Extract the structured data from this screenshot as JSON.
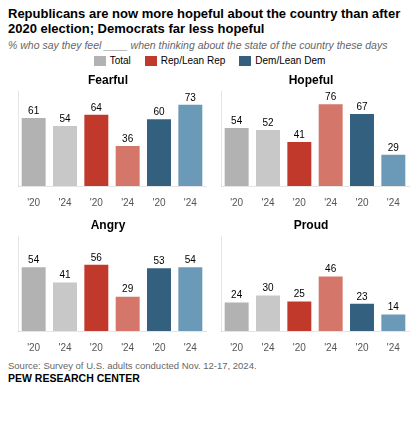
{
  "title": "Republicans are now more hopeful about the country than after 2020 election; Democrats far less hopeful",
  "subtitle": "% who say they feel ____ when thinking about the state of the country these days",
  "annotations": [
    "Source: Survey of U.S. adults conducted Nov. 12-17, 2024.",
    "PEW RESEARCH CENTER"
  ],
  "legend": "top",
  "chart_data": [
    {
      "type": "bar",
      "title": "Fearful",
      "categories": [
        "'20",
        "'24",
        "'20",
        "'24",
        "'20",
        "'24"
      ],
      "series": [
        {
          "name": "Total",
          "color": "#b2b2b2",
          "colors": [
            "#b2b2b2",
            "#c8c8c8",
            null,
            null,
            null,
            null
          ],
          "values": [
            61,
            54,
            null,
            null,
            null,
            null
          ]
        },
        {
          "name": "Rep/Lean Rep",
          "color": "#c0392b",
          "colors": [
            null,
            null,
            "#c0392b",
            "#d4766a",
            null,
            null
          ],
          "values": [
            null,
            null,
            64,
            36,
            null,
            null
          ]
        },
        {
          "name": "Dem/Lean Dem",
          "color": "#34607f",
          "colors": [
            null,
            null,
            null,
            null,
            "#34607f",
            "#6a9ab8"
          ],
          "values": [
            null,
            null,
            null,
            null,
            60,
            73
          ]
        }
      ],
      "ylim": [
        0,
        85
      ],
      "grid": false,
      "data_labels": true,
      "tick_labels": "x"
    },
    {
      "type": "bar",
      "title": "Hopeful",
      "categories": [
        "'20",
        "'24",
        "'20",
        "'24",
        "'20",
        "'24"
      ],
      "series": [
        {
          "name": "Total",
          "color": "#b2b2b2",
          "colors": [
            "#b2b2b2",
            "#c8c8c8",
            null,
            null,
            null,
            null
          ],
          "values": [
            54,
            52,
            null,
            null,
            null,
            null
          ]
        },
        {
          "name": "Rep/Lean Rep",
          "color": "#c0392b",
          "colors": [
            null,
            null,
            "#c0392b",
            "#d4766a",
            null,
            null
          ],
          "values": [
            null,
            null,
            41,
            76,
            null,
            null
          ]
        },
        {
          "name": "Dem/Lean Dem",
          "color": "#34607f",
          "colors": [
            null,
            null,
            null,
            null,
            "#34607f",
            "#6a9ab8"
          ],
          "values": [
            null,
            null,
            null,
            null,
            67,
            29
          ]
        }
      ],
      "ylim": [
        0,
        88
      ],
      "grid": false,
      "data_labels": true,
      "tick_labels": "x"
    },
    {
      "type": "bar",
      "title": "Angry",
      "categories": [
        "'20",
        "'24",
        "'20",
        "'24",
        "'20",
        "'24"
      ],
      "series": [
        {
          "name": "Total",
          "color": "#b2b2b2",
          "colors": [
            "#b2b2b2",
            "#c8c8c8",
            null,
            null,
            null,
            null
          ],
          "values": [
            54,
            41,
            null,
            null,
            null,
            null
          ]
        },
        {
          "name": "Rep/Lean Rep",
          "color": "#c0392b",
          "colors": [
            null,
            null,
            "#c0392b",
            "#d4766a",
            null,
            null
          ],
          "values": [
            null,
            null,
            56,
            29,
            null,
            null
          ]
        },
        {
          "name": "Dem/Lean Dem",
          "color": "#34607f",
          "colors": [
            null,
            null,
            null,
            null,
            "#34607f",
            "#6a9ab8"
          ],
          "values": [
            null,
            null,
            null,
            null,
            53,
            54
          ]
        }
      ],
      "ylim": [
        0,
        80
      ],
      "grid": false,
      "data_labels": true,
      "tick_labels": "x"
    },
    {
      "type": "bar",
      "title": "Proud",
      "categories": [
        "'20",
        "'24",
        "'20",
        "'24",
        "'20",
        "'24"
      ],
      "series": [
        {
          "name": "Total",
          "color": "#b2b2b2",
          "colors": [
            "#b2b2b2",
            "#c8c8c8",
            null,
            null,
            null,
            null
          ],
          "values": [
            24,
            30,
            null,
            null,
            null,
            null
          ]
        },
        {
          "name": "Rep/Lean Rep",
          "color": "#c0392b",
          "colors": [
            null,
            null,
            "#c0392b",
            "#d4766a",
            null,
            null
          ],
          "values": [
            null,
            null,
            25,
            46,
            null,
            null
          ]
        },
        {
          "name": "Dem/Lean Dem",
          "color": "#34607f",
          "colors": [
            null,
            null,
            null,
            null,
            "#34607f",
            "#6a9ab8"
          ],
          "values": [
            null,
            null,
            null,
            null,
            23,
            14
          ]
        }
      ],
      "ylim": [
        0,
        80
      ],
      "grid": false,
      "data_labels": true,
      "tick_labels": "x"
    }
  ]
}
